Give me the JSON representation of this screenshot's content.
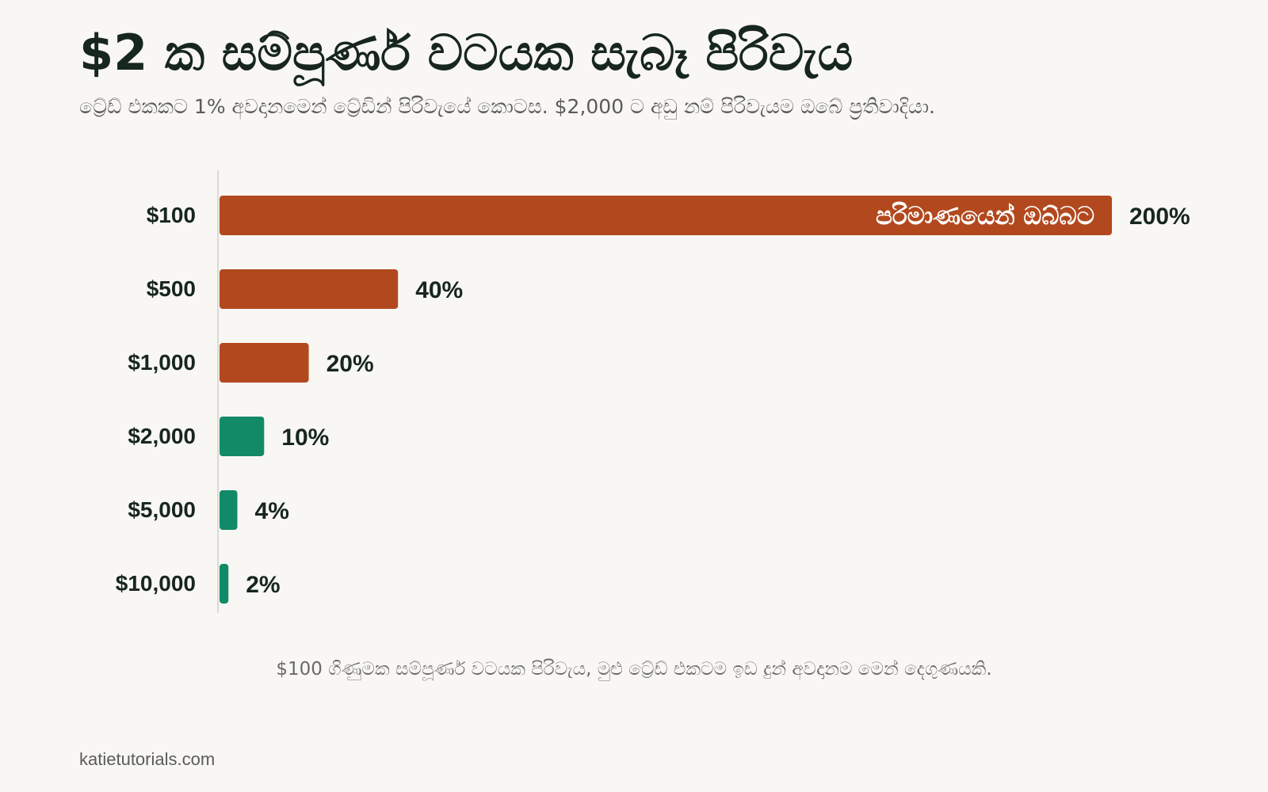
{
  "header": {
    "title": "$2 ක සම්පූර්ණ වටයක සැබෑ පිරිවැය",
    "subtitle": "ට්‍රේඩ් එකකට 1% අවදානමෙන් ට්‍රේඩින් පිරිවැයේ කොටස. $2,000 ට අඩු නම් පිරිවැයම ඔබේ ප්‍රතිවාදියා."
  },
  "footer": {
    "caption": "$100 ගිණුමක සම්පූර්ණ වටයක පිරිවැය, මුළු ට්‍රේඩ් එකටම ඉඩ දුන් අවදානම මෙන් දෙගුණයකි.",
    "source": "katietutorials.com"
  },
  "colors": {
    "above_threshold": "#b2491e",
    "at_or_below_threshold": "#128a68",
    "axis": "#cfcfcb",
    "text": "#17261e"
  },
  "chart_data": {
    "type": "bar",
    "orientation": "horizontal",
    "categories": [
      "$100",
      "$500",
      "$1,000",
      "$2,000",
      "$5,000",
      "$10,000"
    ],
    "values": [
      200,
      40,
      20,
      10,
      4,
      2
    ],
    "value_labels": [
      "200%",
      "40%",
      "20%",
      "10%",
      "4%",
      "2%"
    ],
    "unit": "%",
    "xlim": [
      0,
      200
    ],
    "grid": false,
    "bar_colors": [
      "above_threshold",
      "above_threshold",
      "above_threshold",
      "at_or_below_threshold",
      "at_or_below_threshold",
      "at_or_below_threshold"
    ],
    "annotations": [
      {
        "category": "$100",
        "text": "පරිමාණයෙන් ඔබ්බට"
      }
    ]
  }
}
